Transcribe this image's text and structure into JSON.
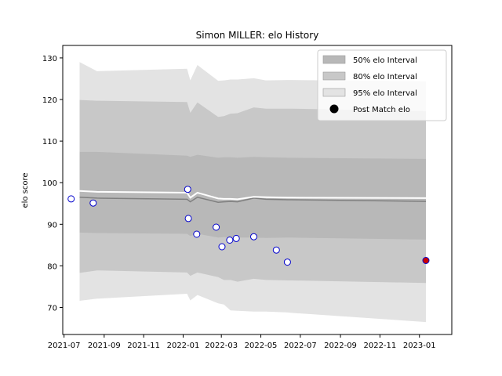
{
  "chart_data": {
    "type": "line",
    "title": "Simon MILLER: elo History",
    "xlabel": "",
    "ylabel": "elo score",
    "ylim": [
      63.5,
      133
    ],
    "xlim": [
      "2021-06-29",
      "2023-02-20"
    ],
    "x_ticks": [
      "2021-07",
      "2021-09",
      "2021-11",
      "2022-01",
      "2022-03",
      "2022-05",
      "2022-07",
      "2022-09",
      "2022-11",
      "2023-01"
    ],
    "y_ticks": [
      70,
      80,
      90,
      100,
      110,
      120,
      130
    ],
    "grid": false,
    "legend_position": "top-right",
    "band_dates": [
      "2021-07-25",
      "2021-08-21",
      "2022-01-07",
      "2022-01-12",
      "2022-01-23",
      "2022-02-24",
      "2022-03-05",
      "2022-03-15",
      "2022-03-26",
      "2022-04-20",
      "2022-05-09",
      "2022-06-12",
      "2022-06-17",
      "2023-01-11"
    ],
    "series": [
      {
        "name": "95% elo Interval",
        "color": "#e3e3e3",
        "lower": [
          71.6,
          72.1,
          73.3,
          71.7,
          73.0,
          71.0,
          70.7,
          69.3,
          69.2,
          69.0,
          69.0,
          68.8,
          68.7,
          66.5
        ],
        "upper": [
          129.0,
          126.8,
          127.4,
          124.6,
          128.3,
          124.5,
          124.6,
          124.8,
          124.8,
          125.1,
          124.6,
          124.7,
          124.7,
          124.4
        ]
      },
      {
        "name": "80% elo Interval",
        "color": "#c8c8c8",
        "lower": [
          78.3,
          78.9,
          78.4,
          77.6,
          78.4,
          77.3,
          76.6,
          76.6,
          76.2,
          76.9,
          76.6,
          76.5,
          76.5,
          75.9
        ],
        "upper": [
          119.9,
          119.7,
          119.4,
          116.8,
          119.3,
          115.8,
          116.0,
          116.6,
          116.7,
          118.1,
          117.8,
          117.8,
          117.8,
          117.2
        ]
      },
      {
        "name": "50% elo Interval",
        "color": "#b8b8b8",
        "lower": [
          88.0,
          87.9,
          87.7,
          87.2,
          87.7,
          86.8,
          86.9,
          86.8,
          86.8,
          86.8,
          86.7,
          86.8,
          86.8,
          86.3
        ],
        "upper": [
          107.4,
          107.4,
          106.5,
          106.2,
          106.7,
          106.0,
          106.1,
          106.1,
          106.0,
          106.2,
          106.1,
          106.0,
          106.0,
          105.7
        ]
      }
    ],
    "mean_line": [
      96.5,
      96.3,
      96.0,
      95.4,
      96.5,
      95.3,
      95.4,
      95.5,
      95.4,
      96.3,
      96.0,
      95.9,
      95.9,
      95.5
    ],
    "expected_line": [
      98.0,
      97.8,
      97.6,
      96.4,
      97.6,
      96.2,
      96.1,
      96.1,
      96.0,
      96.6,
      96.5,
      96.4,
      96.4,
      96.3
    ],
    "points": {
      "name": "Post Match elo",
      "dates": [
        "2021-07-12",
        "2021-08-15",
        "2022-01-08",
        "2022-01-09",
        "2022-01-22",
        "2022-02-21",
        "2022-03-02",
        "2022-03-14",
        "2022-03-24",
        "2022-04-20",
        "2022-05-25",
        "2022-06-11",
        "2023-01-11"
      ],
      "values": [
        96.1,
        95.1,
        98.4,
        91.4,
        87.6,
        89.3,
        84.6,
        86.2,
        86.6,
        87.0,
        83.8,
        80.9,
        81.3
      ]
    },
    "colors": {
      "point_edge": "#0000cc",
      "point_fill": "#ffffff",
      "last_point_fill": "#cc0000",
      "mean_line": "#808080",
      "expected_line": "#ffffff",
      "legend_marker": "#000000"
    }
  }
}
